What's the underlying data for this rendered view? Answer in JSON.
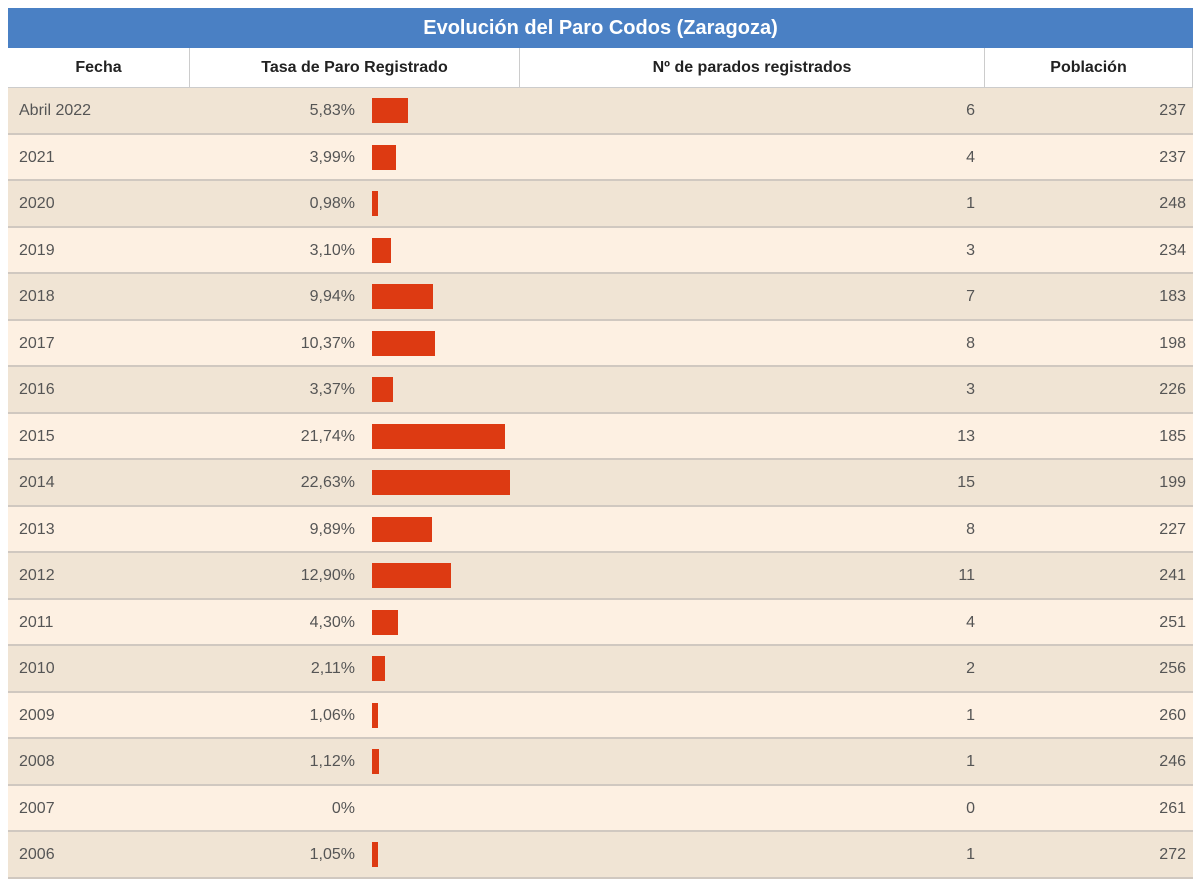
{
  "table": {
    "title": "Evolución del Paro Codos (Zaragoza)",
    "columns": [
      "Fecha",
      "Tasa de Paro Registrado",
      "Nº de parados registrados",
      "Población"
    ],
    "rows": [
      {
        "fecha": "Abril 2022",
        "rate": 5.83,
        "rate_label": "5,83%",
        "parados": 6,
        "poblacion": 237
      },
      {
        "fecha": "2021",
        "rate": 3.99,
        "rate_label": "3,99%",
        "parados": 4,
        "poblacion": 237
      },
      {
        "fecha": "2020",
        "rate": 0.98,
        "rate_label": "0,98%",
        "parados": 1,
        "poblacion": 248
      },
      {
        "fecha": "2019",
        "rate": 3.1,
        "rate_label": "3,10%",
        "parados": 3,
        "poblacion": 234
      },
      {
        "fecha": "2018",
        "rate": 9.94,
        "rate_label": "9,94%",
        "parados": 7,
        "poblacion": 183
      },
      {
        "fecha": "2017",
        "rate": 10.37,
        "rate_label": "10,37%",
        "parados": 8,
        "poblacion": 198
      },
      {
        "fecha": "2016",
        "rate": 3.37,
        "rate_label": "3,37%",
        "parados": 3,
        "poblacion": 226
      },
      {
        "fecha": "2015",
        "rate": 21.74,
        "rate_label": "21,74%",
        "parados": 13,
        "poblacion": 185
      },
      {
        "fecha": "2014",
        "rate": 22.63,
        "rate_label": "22,63%",
        "parados": 15,
        "poblacion": 199
      },
      {
        "fecha": "2013",
        "rate": 9.89,
        "rate_label": "9,89%",
        "parados": 8,
        "poblacion": 227
      },
      {
        "fecha": "2012",
        "rate": 12.9,
        "rate_label": "12,90%",
        "parados": 11,
        "poblacion": 241
      },
      {
        "fecha": "2011",
        "rate": 4.3,
        "rate_label": "4,30%",
        "parados": 4,
        "poblacion": 251
      },
      {
        "fecha": "2010",
        "rate": 2.11,
        "rate_label": "2,11%",
        "parados": 2,
        "poblacion": 256
      },
      {
        "fecha": "2009",
        "rate": 1.06,
        "rate_label": "1,06%",
        "parados": 1,
        "poblacion": 260
      },
      {
        "fecha": "2008",
        "rate": 1.12,
        "rate_label": "1,12%",
        "parados": 1,
        "poblacion": 246
      },
      {
        "fecha": "2007",
        "rate": 0,
        "rate_label": "0%",
        "parados": 0,
        "poblacion": 261
      },
      {
        "fecha": "2006",
        "rate": 1.05,
        "rate_label": "1,05%",
        "parados": 1,
        "poblacion": 272
      }
    ]
  }
}
